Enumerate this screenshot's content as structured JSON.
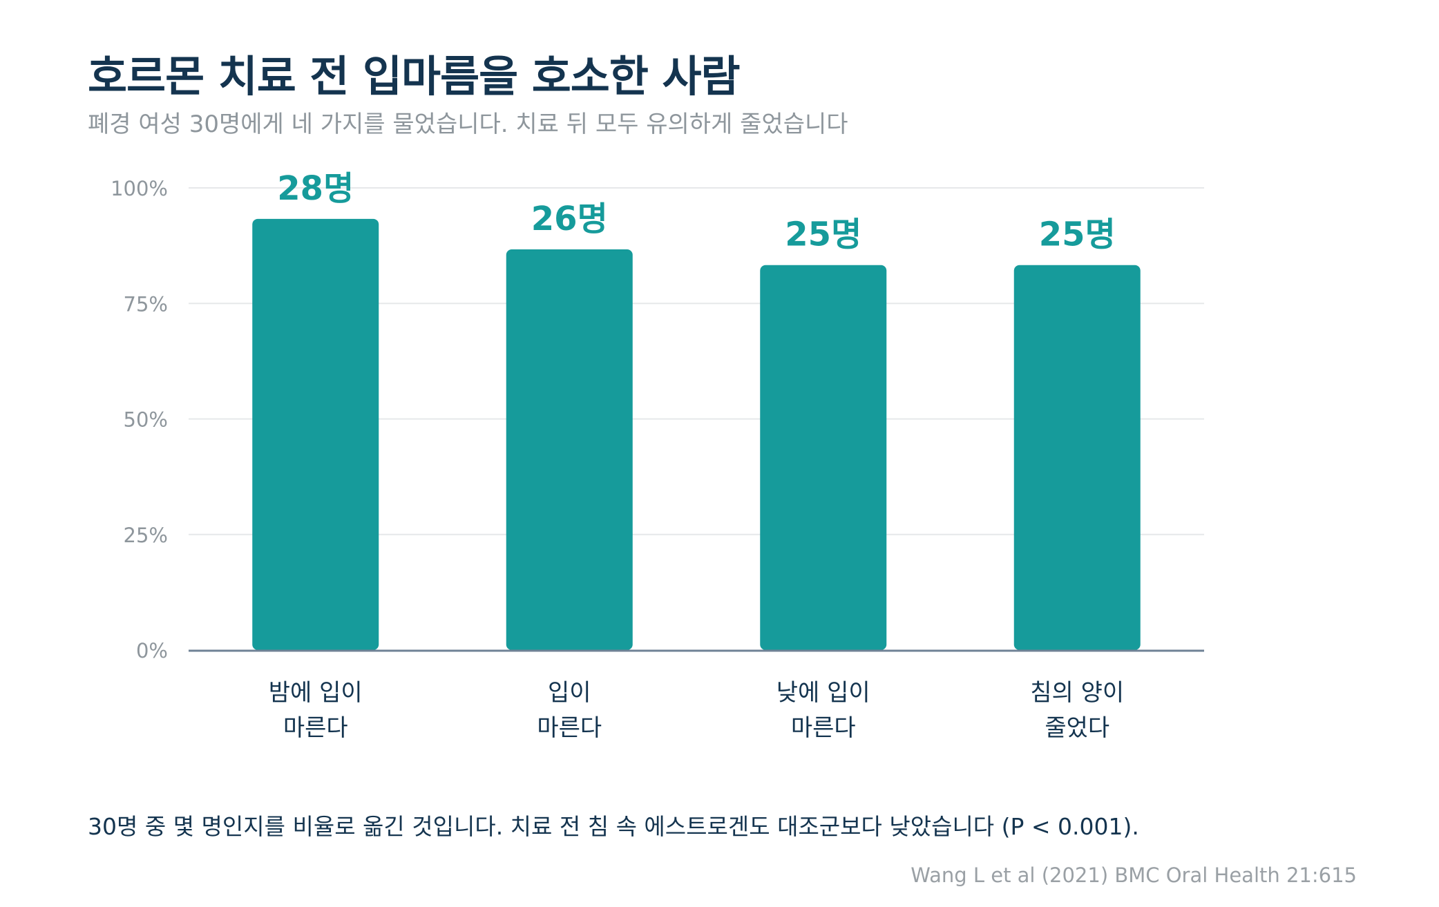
{
  "title": "호르몬 치료 전 입마름을 호소한 사람",
  "subtitle": "폐경 여성 30명에게 네 가지를 물었습니다. 치료 뒤 모두 유의하게 줄었습니다",
  "note": "30명 중 몇 명인지를 비율로 옮긴 것입니다. 치료 전 침 속 에스트로겐도 대조군보다 낮았습니다 (P < 0.001).",
  "source": "Wang L et al (2021) BMC Oral Health 21:615",
  "colors": {
    "bar": "#169b9b",
    "value_label": "#169b9b",
    "grid": "#e6e8ea",
    "axis": "#6f8296",
    "tick_label": "#8e969c",
    "category_label": "#14344f"
  },
  "chart_data": {
    "type": "bar",
    "categories": [
      [
        "밤에 입이",
        "마른다"
      ],
      [
        "입이",
        "마른다"
      ],
      [
        "낮에 입이",
        "마른다"
      ],
      [
        "침의 양이",
        "줄었다"
      ]
    ],
    "values": [
      93.3,
      86.7,
      83.3,
      83.3
    ],
    "value_labels": [
      "28명",
      "26명",
      "25명",
      "25명"
    ],
    "ylim": [
      0,
      100
    ],
    "yticks": [
      0,
      25,
      50,
      75,
      100
    ],
    "ytick_labels": [
      "0%",
      "25%",
      "50%",
      "75%",
      "100%"
    ],
    "grid": true
  }
}
